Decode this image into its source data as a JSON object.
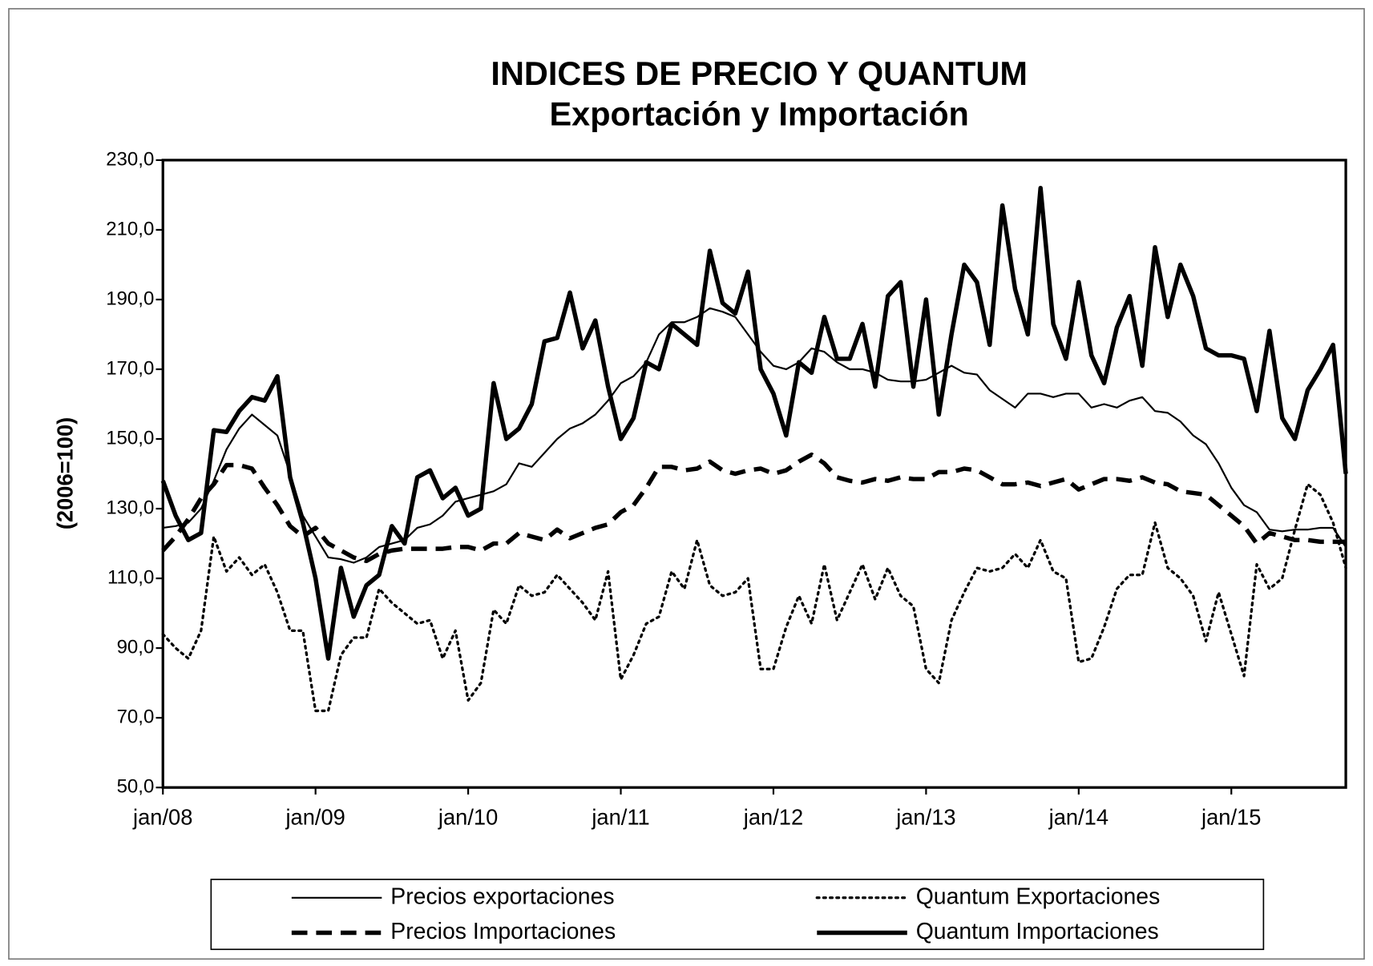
{
  "chart_data": {
    "type": "line",
    "title": "INDICES DE PRECIO Y QUANTUM",
    "subtitle": "Exportación y Importación",
    "y_label": "(2006=100)",
    "categories": [
      "jan/08",
      null,
      null,
      null,
      null,
      null,
      null,
      null,
      null,
      null,
      null,
      null,
      "jan/09",
      null,
      null,
      null,
      null,
      null,
      null,
      null,
      null,
      null,
      null,
      null,
      "jan/10",
      null,
      null,
      null,
      null,
      null,
      null,
      null,
      null,
      null,
      null,
      null,
      "jan/11",
      null,
      null,
      null,
      null,
      null,
      null,
      null,
      null,
      null,
      null,
      null,
      "jan/12",
      null,
      null,
      null,
      null,
      null,
      null,
      null,
      null,
      null,
      null,
      null,
      "jan/13",
      null,
      null,
      null,
      null,
      null,
      null,
      null,
      null,
      null,
      null,
      null,
      "jan/14",
      null,
      null,
      null,
      null,
      null,
      null,
      null,
      null,
      null,
      null,
      null,
      "jan/15",
      null,
      null,
      null,
      null,
      null,
      null,
      null,
      null,
      null
    ],
    "ylim": [
      50,
      230
    ],
    "yticks": [
      {
        "value": 50,
        "label": "50,0"
      },
      {
        "value": 70,
        "label": "70,0"
      },
      {
        "value": 90,
        "label": "90,0"
      },
      {
        "value": 110,
        "label": "110,0"
      },
      {
        "value": 130,
        "label": "130,0"
      },
      {
        "value": 150,
        "label": "150,0"
      },
      {
        "value": 170,
        "label": "170,0"
      },
      {
        "value": 190,
        "label": "190,0"
      },
      {
        "value": 210,
        "label": "210,0"
      },
      {
        "value": 230,
        "label": "230,0"
      }
    ],
    "series": [
      {
        "name": "Precios exportaciones",
        "color": "#000000",
        "dash": "solid",
        "width": 2,
        "values": [
          124.5,
          125,
          126,
          130,
          138,
          147,
          153,
          157,
          154,
          151,
          140,
          128,
          122,
          116,
          115.5,
          114.5,
          116,
          119,
          120,
          121,
          124.5,
          125.5,
          128,
          132,
          133,
          134,
          135,
          137,
          143,
          142,
          146,
          150,
          153,
          154.5,
          157,
          161,
          166,
          168,
          172,
          180,
          183.5,
          183.5,
          185,
          187.5,
          186.5,
          185,
          180,
          175,
          171,
          170,
          172,
          176,
          175,
          172,
          170,
          170,
          169,
          167,
          166.5,
          166.5,
          167,
          169,
          171,
          169,
          168.5,
          164,
          161.5,
          159,
          163,
          163,
          162,
          163,
          163,
          159,
          160,
          159,
          161,
          162,
          158,
          157.5,
          155,
          151,
          148.5,
          143,
          136,
          131,
          129,
          124,
          123.5,
          124,
          124,
          124.5,
          124.5,
          119
        ]
      },
      {
        "name": "Quantum Exportaciones",
        "color": "#000000",
        "dash": "dotted",
        "width": 3,
        "values": [
          94,
          90,
          87,
          95,
          122,
          112,
          116,
          111,
          114,
          106,
          95,
          95,
          72,
          72,
          88,
          93,
          93,
          107,
          103,
          100,
          97,
          98,
          87,
          95,
          75,
          80,
          101,
          97,
          108,
          105,
          106,
          111,
          107,
          103,
          98,
          112,
          81,
          88,
          97,
          99,
          112,
          107,
          121,
          108,
          105,
          106,
          110,
          84,
          84,
          96,
          105,
          97,
          114,
          98,
          106,
          114,
          104,
          113,
          105,
          102,
          84,
          80,
          98,
          106,
          113,
          112,
          113,
          117,
          113,
          121,
          112,
          110,
          86,
          87,
          96,
          107,
          111,
          111,
          126,
          113,
          110,
          105,
          92,
          106,
          94,
          82,
          114,
          107,
          110,
          124,
          137,
          134,
          126,
          113
        ]
      },
      {
        "name": "Precios Importaciones",
        "color": "#000000",
        "dash": "dashed",
        "width": 5,
        "values": [
          118,
          122,
          127,
          133,
          137,
          142.5,
          142.5,
          141.5,
          136,
          131,
          125,
          122,
          124.5,
          120,
          118,
          116,
          115,
          117,
          118,
          118.5,
          118.5,
          118.5,
          118.5,
          119,
          119,
          118,
          120,
          120,
          123,
          122,
          121,
          124,
          121.5,
          123,
          124.5,
          125.5,
          129,
          131,
          136,
          142,
          142,
          141,
          141.5,
          143.5,
          141,
          140,
          141,
          141.5,
          140,
          141,
          143.5,
          145.5,
          143,
          139,
          138,
          137.5,
          138.5,
          138,
          139,
          138.5,
          138.5,
          140.5,
          140.5,
          141.5,
          141,
          139,
          137,
          137,
          137.5,
          136.5,
          137.5,
          138.5,
          135.5,
          137,
          138.5,
          138.5,
          138,
          139,
          137.5,
          137,
          135,
          134.5,
          134,
          131,
          128,
          125,
          120,
          123,
          122,
          121,
          121,
          120.5,
          120.5,
          120.5
        ]
      },
      {
        "name": "Quantum Importaciones",
        "color": "#000000",
        "dash": "solid",
        "width": 5,
        "values": [
          138,
          128,
          121,
          123,
          152.5,
          152,
          158,
          162,
          161,
          168,
          139,
          126,
          110,
          87,
          113,
          99,
          108,
          111,
          125,
          120,
          139,
          141,
          133,
          136,
          128,
          130,
          166,
          150,
          153,
          160,
          178,
          179,
          192,
          176,
          184,
          165,
          150,
          156,
          172,
          170,
          183,
          180,
          177,
          204,
          189,
          186,
          198,
          170,
          163,
          151,
          172,
          169,
          185,
          173,
          173,
          183,
          165,
          191,
          195,
          165,
          190,
          157,
          180,
          200,
          195,
          177,
          217,
          193,
          180,
          222,
          183,
          173,
          195,
          174,
          166,
          182,
          191,
          171,
          205,
          185,
          200,
          191,
          176,
          174,
          174,
          173,
          158,
          181,
          156,
          150,
          164,
          170,
          177,
          140
        ]
      }
    ]
  }
}
